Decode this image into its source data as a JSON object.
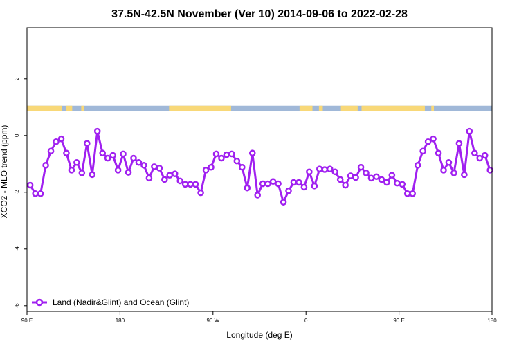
{
  "chart_data": {
    "type": "line",
    "title": "37.5N-42.5N November (Ver 10)   2014-09-06 to 2022-02-28",
    "xlabel": "Longitude (deg E)",
    "ylabel": "XCO2 - MLO trend (ppm)",
    "xlim": [
      90,
      450
    ],
    "ylim": [
      -6.2,
      3.8
    ],
    "x_ticks": [
      {
        "value": 90,
        "label": "90 E"
      },
      {
        "value": 162,
        "label": "180"
      },
      {
        "value": 234,
        "label": "90 W"
      },
      {
        "value": 306,
        "label": "0"
      },
      {
        "value": 378,
        "label": "90 E"
      },
      {
        "value": 450,
        "label": "180"
      }
    ],
    "y_ticks": [
      {
        "value": 2,
        "label": "2"
      },
      {
        "value": 0,
        "label": "0"
      },
      {
        "value": -2,
        "label": "-2"
      },
      {
        "value": -4,
        "label": "-4"
      },
      {
        "value": -6,
        "label": "-6"
      }
    ],
    "grid": false,
    "legend_position": "bottom-left",
    "colors": {
      "series": "#a020f0",
      "land": "#f8d878",
      "ocean": "#a0b8d8"
    },
    "land_ocean_band": {
      "y_range": [
        0.85,
        1.05
      ],
      "land_segments": [
        [
          90,
          117
        ],
        [
          120,
          125
        ],
        [
          132,
          134
        ],
        [
          200,
          248
        ],
        [
          301,
          311
        ],
        [
          316,
          319
        ],
        [
          333,
          346
        ],
        [
          349,
          398
        ],
        [
          403,
          405
        ]
      ]
    },
    "series": [
      {
        "name": "Land (Nadir&Glint) and Ocean (Glint)",
        "x": [
          92.5,
          96.5,
          100.5,
          104.5,
          108.5,
          112.5,
          116.5,
          120.5,
          124.5,
          128.5,
          132.5,
          136.5,
          140.5,
          144.5,
          148.5,
          152.5,
          156.5,
          160.5,
          164.5,
          168.5,
          172.5,
          176.5,
          180.5,
          184.5,
          188.5,
          192.5,
          196.5,
          200.5,
          204.5,
          208.5,
          212.5,
          216.5,
          220.5,
          224.5,
          228.5,
          232.5,
          236.5,
          240.5,
          244.5,
          248.5,
          252.5,
          256.5,
          260.5,
          264.5,
          268.5,
          272.5,
          276.5,
          280.5,
          284.5,
          288.5,
          292.5,
          296.5,
          300.5,
          304.5,
          308.5,
          312.5,
          316.5,
          320.5,
          324.5,
          328.5,
          332.5,
          336.5,
          340.5,
          344.5,
          348.5,
          352.5,
          356.5,
          360.5,
          364.5,
          368.5,
          372.5,
          376.5,
          380.5,
          384.5,
          388.5,
          392.5,
          396.5,
          400.5,
          404.5,
          408.5,
          412.5,
          416.5,
          420.5,
          424.5,
          428.5,
          432.5,
          436.5,
          440.5,
          444.5,
          448.5
        ],
        "values": [
          -1.75,
          -2.05,
          -2.05,
          -1.05,
          -0.55,
          -0.22,
          -0.12,
          -0.62,
          -1.22,
          -0.95,
          -1.32,
          -0.28,
          -1.38,
          0.15,
          -0.62,
          -0.8,
          -0.7,
          -1.22,
          -0.65,
          -1.3,
          -0.8,
          -0.95,
          -1.05,
          -1.5,
          -1.1,
          -1.15,
          -1.55,
          -1.4,
          -1.35,
          -1.6,
          -1.72,
          -1.72,
          -1.72,
          -2.02,
          -1.22,
          -1.12,
          -0.65,
          -0.8,
          -0.68,
          -0.65,
          -0.9,
          -1.12,
          -1.85,
          -0.62,
          -2.1,
          -1.7,
          -1.7,
          -1.62,
          -1.7,
          -2.35,
          -1.95,
          -1.65,
          -1.65,
          -1.82,
          -1.28,
          -1.78,
          -1.18,
          -1.2,
          -1.18,
          -1.28,
          -1.55,
          -1.75,
          -1.42,
          -1.48,
          -1.12,
          -1.32,
          -1.5,
          -1.45,
          -1.55,
          -1.65,
          -1.4,
          -1.68,
          -1.72,
          -2.05,
          -2.05,
          -1.05,
          -0.55,
          -0.22,
          -0.12,
          -0.62,
          -1.22,
          -0.95,
          -1.32,
          -0.28,
          -1.38,
          0.15,
          -0.62,
          -0.8,
          -0.7,
          -1.22
        ]
      }
    ]
  }
}
